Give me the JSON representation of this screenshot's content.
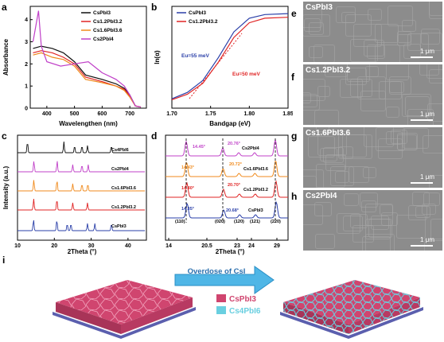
{
  "panels": {
    "a": {
      "letter": "a",
      "ylabel": "Absorbance",
      "xlabel": "Wavelengthen (nm)",
      "xticks": [
        "400",
        "500",
        "600",
        "700"
      ],
      "yticks": [
        "0",
        "1",
        "2",
        "3",
        "4"
      ],
      "legend": [
        "CsPbI3",
        "Cs1.2PbI3.2",
        "Cs1.6PbI3.6",
        "Cs2PbI4"
      ]
    },
    "b": {
      "letter": "b",
      "ylabel": "ln(α)",
      "xlabel": "Bandgap (eV)",
      "xticks": [
        "1.70",
        "1.75",
        "1.80",
        "1.85"
      ],
      "legend": [
        "CsPbI3",
        "Cs1.2PbI3.2"
      ],
      "eu1": "Eu=55 meV",
      "eu2": "Eu=50 meV"
    },
    "c": {
      "letter": "c",
      "ylabel": "Intensity (a.u.)",
      "xlabel": "2Theta (°)",
      "xticks": [
        "10",
        "20",
        "30",
        "40"
      ],
      "legend": [
        "Cs4PbI6",
        "Cs2PbI4",
        "Cs1.6PbI3.6",
        "Cs1.2PbI3.2",
        "CsPbI3"
      ]
    },
    "d": {
      "letter": "d",
      "ylabel": "Intensity (a.u.)",
      "xlabel": "2Theta (°)",
      "xticks": [
        "14",
        "20.5",
        "23",
        "24",
        "29"
      ],
      "peaks": [
        "14.45°",
        "20.76°",
        "14.43°",
        "20.72°",
        "14.40°",
        "20.70°",
        "14.35°",
        "20.68°"
      ],
      "hkl": [
        "(110)",
        "(020)",
        "(120)",
        "(121)",
        "(220)"
      ],
      "legend": [
        "Cs2PbI4",
        "Cs1.6PbI3.6",
        "Cs1.2PbI3.2",
        "CsPbI3"
      ]
    },
    "e": {
      "letter": "e",
      "label": "CsPbI3",
      "scale": "1 μm"
    },
    "f": {
      "letter": "f",
      "label": "Cs1.2PbI3.2",
      "scale": "1 μm"
    },
    "g": {
      "letter": "g",
      "label": "Cs1.6PbI3.6",
      "scale": "1 μm"
    },
    "h": {
      "letter": "h",
      "label": "Cs2PbI4",
      "scale": "1 μm"
    },
    "i": {
      "letter": "i",
      "arrow_text": "Overdose of CsI",
      "legend": [
        "CsPbI3",
        "Cs4PbI6"
      ]
    }
  },
  "colors": {
    "black": "#111111",
    "red": "#e02424",
    "orange": "#f08a1c",
    "purple": "#c040c8",
    "blue": "#2a3fa8",
    "pink": "#d0456f",
    "cyan": "#69cfe0"
  },
  "chart_data": [
    {
      "type": "line",
      "title": "",
      "xlabel": "Wavelengthen (nm)",
      "ylabel": "Absorbance",
      "xlim": [
        340,
        760
      ],
      "ylim": [
        0,
        4.6
      ],
      "series": [
        {
          "name": "CsPbI3",
          "x": [
            350,
            380,
            420,
            460,
            500,
            540,
            600,
            650,
            680,
            700,
            720,
            740
          ],
          "values": [
            2.7,
            2.8,
            2.7,
            2.5,
            2.1,
            1.5,
            1.3,
            1.1,
            0.9,
            0.6,
            0.1,
            0.05
          ]
        },
        {
          "name": "Cs1.2PbI3.2",
          "x": [
            350,
            380,
            420,
            460,
            500,
            540,
            600,
            650,
            680,
            700,
            720,
            740
          ],
          "values": [
            2.5,
            2.6,
            2.5,
            2.3,
            2.0,
            1.4,
            1.2,
            1.0,
            0.85,
            0.55,
            0.1,
            0.05
          ]
        },
        {
          "name": "Cs1.6PbI3.6",
          "x": [
            350,
            380,
            420,
            460,
            500,
            540,
            600,
            650,
            680,
            700,
            720,
            740
          ],
          "values": [
            2.4,
            2.5,
            2.3,
            2.2,
            1.9,
            1.3,
            1.15,
            1.0,
            0.8,
            0.5,
            0.1,
            0.05
          ]
        },
        {
          "name": "Cs2PbI4",
          "x": [
            350,
            370,
            380,
            400,
            450,
            500,
            550,
            600,
            650,
            680,
            700,
            720,
            740
          ],
          "values": [
            3.0,
            4.4,
            2.8,
            2.1,
            1.9,
            2.0,
            2.1,
            1.6,
            1.3,
            1.0,
            0.6,
            0.1,
            0.05
          ]
        }
      ]
    },
    {
      "type": "line",
      "title": "",
      "xlabel": "Bandgap (eV)",
      "ylabel": "ln(α)",
      "xlim": [
        1.7,
        1.85
      ],
      "series": [
        {
          "name": "CsPbI3",
          "x": [
            1.7,
            1.72,
            1.74,
            1.76,
            1.78,
            1.8,
            1.82,
            1.85
          ],
          "values": [
            0.05,
            0.12,
            0.25,
            0.5,
            0.78,
            0.93,
            0.97,
            0.98
          ]
        },
        {
          "name": "Cs1.2PbI3.2",
          "x": [
            1.7,
            1.72,
            1.74,
            1.76,
            1.78,
            1.8,
            1.82,
            1.85
          ],
          "values": [
            0.04,
            0.1,
            0.22,
            0.45,
            0.72,
            0.88,
            0.93,
            0.94
          ]
        }
      ]
    },
    {
      "type": "line",
      "title": "",
      "xlabel": "2Theta (°)",
      "ylabel": "Intensity (a.u.)",
      "xlim": [
        10,
        45
      ],
      "series": [
        {
          "name": "Cs4PbI6",
          "peaks": [
            12.7,
            22.6,
            25.5,
            27.5,
            29.0,
            35.5
          ]
        },
        {
          "name": "Cs2PbI4",
          "peaks": [
            14.45,
            20.76,
            25.0,
            27.5,
            29.2
          ]
        },
        {
          "name": "Cs1.6PbI3.6",
          "peaks": [
            14.43,
            20.72,
            25.0,
            27.5,
            29.1
          ]
        },
        {
          "name": "Cs1.2PbI3.2",
          "peaks": [
            14.4,
            20.7,
            25.0,
            29.0
          ]
        },
        {
          "name": "CsPbI3",
          "peaks": [
            14.35,
            20.68,
            23.5,
            24.5,
            29.0,
            31.0,
            35.5
          ]
        }
      ]
    }
  ]
}
